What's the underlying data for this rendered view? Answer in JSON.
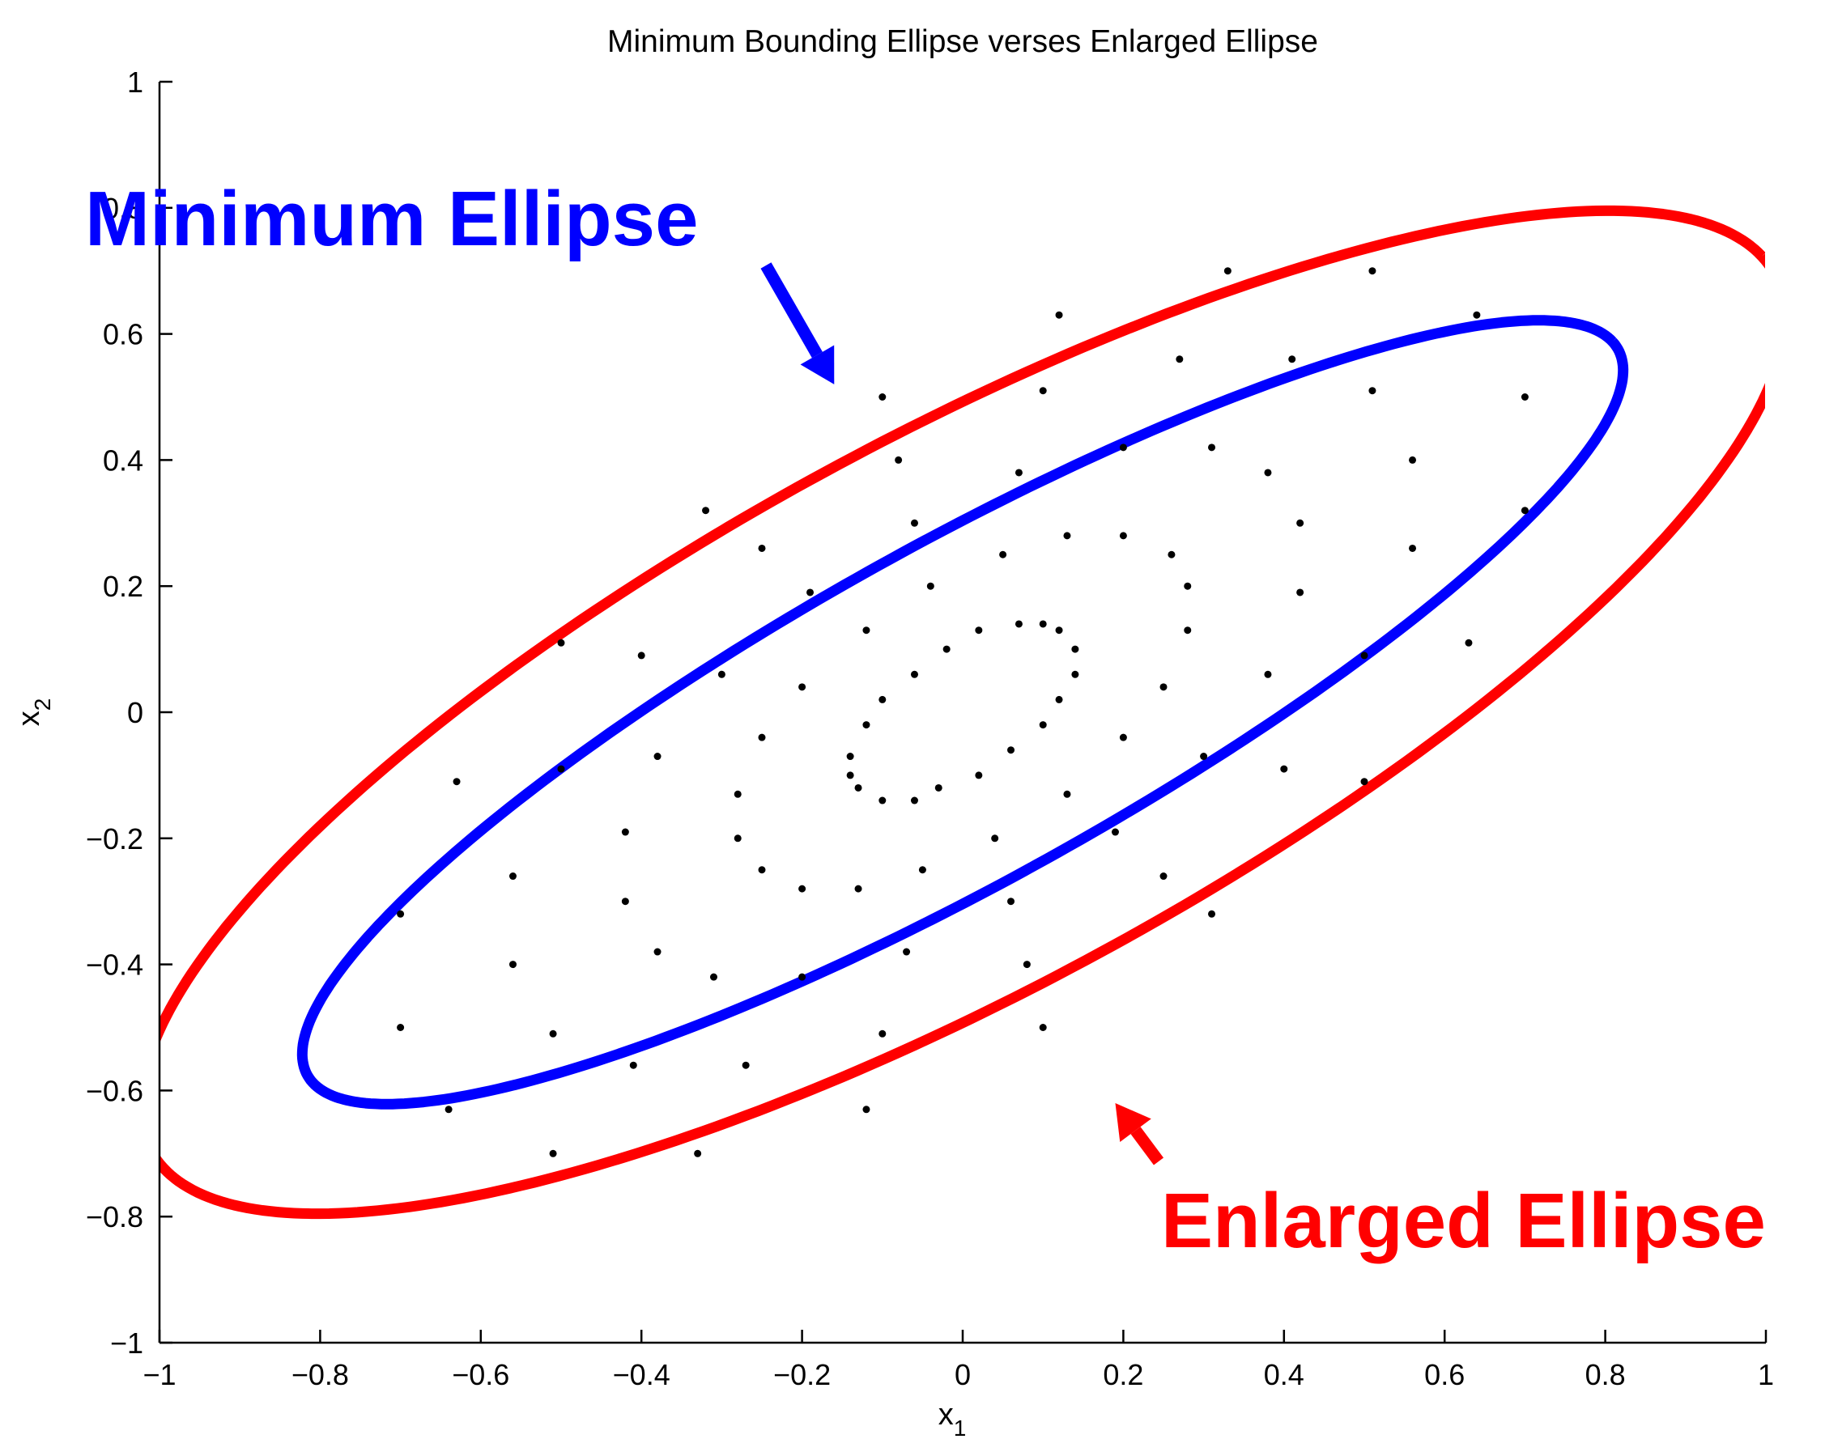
{
  "chart_data": {
    "type": "scatter",
    "title": "Minimum Bounding Ellipse verses Enlarged Ellipse",
    "xlabel": {
      "base": "x",
      "sub": "1"
    },
    "ylabel": {
      "base": "x",
      "sub": "2"
    },
    "xlim": [
      -1,
      1
    ],
    "ylim": [
      -1,
      1
    ],
    "grid": false,
    "xticks": [
      {
        "value": -1,
        "label": "−1"
      },
      {
        "value": -0.8,
        "label": "−0.8"
      },
      {
        "value": -0.6,
        "label": "−0.6"
      },
      {
        "value": -0.4,
        "label": "−0.4"
      },
      {
        "value": -0.2,
        "label": "−0.2"
      },
      {
        "value": 0,
        "label": "0"
      },
      {
        "value": 0.2,
        "label": "0.2"
      },
      {
        "value": 0.4,
        "label": "0.4"
      },
      {
        "value": 0.6,
        "label": "0.6"
      },
      {
        "value": 0.8,
        "label": "0.8"
      },
      {
        "value": 1,
        "label": "1"
      }
    ],
    "yticks": [
      {
        "value": -1,
        "label": "−1"
      },
      {
        "value": -0.8,
        "label": "−0.8"
      },
      {
        "value": -0.6,
        "label": "−0.6"
      },
      {
        "value": -0.4,
        "label": "−0.4"
      },
      {
        "value": -0.2,
        "label": "−0.2"
      },
      {
        "value": 0,
        "label": "0"
      },
      {
        "value": 0.2,
        "label": "0.2"
      },
      {
        "value": 0.4,
        "label": "0.4"
      },
      {
        "value": 0.6,
        "label": "0.6"
      },
      {
        "value": 0.8,
        "label": "0.8"
      },
      {
        "value": 1,
        "label": "1"
      }
    ],
    "ellipses": [
      {
        "label": "Minimum Ellipse",
        "color": "#0000ff",
        "center": [
          0,
          0
        ],
        "semi_major": 1.0,
        "semi_minor": 0.25,
        "angle_deg": 36
      },
      {
        "label": "Enlarged Ellipse",
        "color": "#ff0000",
        "center": [
          0,
          0
        ],
        "semi_major": 1.23,
        "semi_minor": 0.41,
        "angle_deg": 36
      }
    ],
    "points": [
      [
        0.33,
        0.7
      ],
      [
        0.51,
        0.7
      ],
      [
        0.12,
        0.63
      ],
      [
        0.64,
        0.63
      ],
      [
        0.27,
        0.56
      ],
      [
        0.41,
        0.56
      ],
      [
        -0.1,
        0.5
      ],
      [
        0.1,
        0.51
      ],
      [
        0.51,
        0.51
      ],
      [
        0.7,
        0.5
      ],
      [
        -0.08,
        0.4
      ],
      [
        0.2,
        0.42
      ],
      [
        0.31,
        0.42
      ],
      [
        0.56,
        0.4
      ],
      [
        0.07,
        0.38
      ],
      [
        0.38,
        0.38
      ],
      [
        -0.32,
        0.32
      ],
      [
        -0.06,
        0.3
      ],
      [
        0.42,
        0.3
      ],
      [
        0.7,
        0.32
      ],
      [
        -0.25,
        0.26
      ],
      [
        0.05,
        0.25
      ],
      [
        0.13,
        0.28
      ],
      [
        0.2,
        0.28
      ],
      [
        0.26,
        0.25
      ],
      [
        0.56,
        0.26
      ],
      [
        -0.19,
        0.19
      ],
      [
        -0.04,
        0.2
      ],
      [
        0.28,
        0.2
      ],
      [
        0.42,
        0.19
      ],
      [
        -0.5,
        0.11
      ],
      [
        -0.4,
        0.09
      ],
      [
        -0.12,
        0.13
      ],
      [
        0.02,
        0.13
      ],
      [
        0.07,
        0.14
      ],
      [
        0.1,
        0.14
      ],
      [
        0.12,
        0.13
      ],
      [
        0.14,
        0.1
      ],
      [
        -0.02,
        0.1
      ],
      [
        0.28,
        0.13
      ],
      [
        0.5,
        0.09
      ],
      [
        0.63,
        0.11
      ],
      [
        -0.3,
        0.06
      ],
      [
        -0.2,
        0.04
      ],
      [
        -0.06,
        0.06
      ],
      [
        0.14,
        0.06
      ],
      [
        0.25,
        0.04
      ],
      [
        0.38,
        0.06
      ],
      [
        -0.1,
        0.02
      ],
      [
        0.12,
        0.02
      ],
      [
        -0.12,
        -0.02
      ],
      [
        0.1,
        -0.02
      ],
      [
        -0.25,
        -0.04
      ],
      [
        0.2,
        -0.04
      ],
      [
        -0.38,
        -0.07
      ],
      [
        -0.14,
        -0.07
      ],
      [
        0.06,
        -0.06
      ],
      [
        0.3,
        -0.07
      ],
      [
        -0.63,
        -0.11
      ],
      [
        -0.5,
        -0.09
      ],
      [
        -0.14,
        -0.1
      ],
      [
        0.02,
        -0.1
      ],
      [
        0.4,
        -0.09
      ],
      [
        0.5,
        -0.11
      ],
      [
        -0.28,
        -0.13
      ],
      [
        -0.13,
        -0.12
      ],
      [
        -0.1,
        -0.14
      ],
      [
        -0.06,
        -0.14
      ],
      [
        -0.03,
        -0.12
      ],
      [
        0.13,
        -0.13
      ],
      [
        -0.28,
        -0.2
      ],
      [
        -0.42,
        -0.19
      ],
      [
        0.04,
        -0.2
      ],
      [
        0.19,
        -0.19
      ],
      [
        -0.56,
        -0.26
      ],
      [
        -0.25,
        -0.25
      ],
      [
        -0.2,
        -0.28
      ],
      [
        -0.13,
        -0.28
      ],
      [
        -0.05,
        -0.25
      ],
      [
        0.25,
        -0.26
      ],
      [
        -0.7,
        -0.32
      ],
      [
        -0.42,
        -0.3
      ],
      [
        0.06,
        -0.3
      ],
      [
        0.31,
        -0.32
      ],
      [
        -0.38,
        -0.38
      ],
      [
        -0.07,
        -0.38
      ],
      [
        -0.56,
        -0.4
      ],
      [
        -0.31,
        -0.42
      ],
      [
        -0.2,
        -0.42
      ],
      [
        0.08,
        -0.4
      ],
      [
        -0.7,
        -0.5
      ],
      [
        -0.51,
        -0.51
      ],
      [
        -0.1,
        -0.51
      ],
      [
        0.1,
        -0.5
      ],
      [
        -0.41,
        -0.56
      ],
      [
        -0.27,
        -0.56
      ],
      [
        -0.64,
        -0.63
      ],
      [
        -0.12,
        -0.63
      ],
      [
        -0.51,
        -0.7
      ],
      [
        -0.33,
        -0.7
      ]
    ],
    "annotations": [
      {
        "text": "Minimum Ellipse",
        "color": "#0000ff",
        "target": [
          -0.16,
          0.52
        ]
      },
      {
        "text": "Enlarged Ellipse",
        "color": "#ff0000",
        "target": [
          0.19,
          -0.62
        ]
      }
    ]
  }
}
